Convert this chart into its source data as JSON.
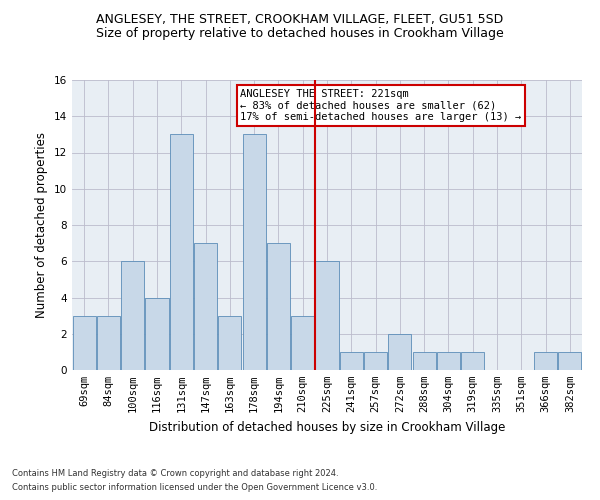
{
  "title1": "ANGLESEY, THE STREET, CROOKHAM VILLAGE, FLEET, GU51 5SD",
  "title2": "Size of property relative to detached houses in Crookham Village",
  "xlabel": "Distribution of detached houses by size in Crookham Village",
  "ylabel": "Number of detached properties",
  "footnote1": "Contains HM Land Registry data © Crown copyright and database right 2024.",
  "footnote2": "Contains public sector information licensed under the Open Government Licence v3.0.",
  "categories": [
    "69sqm",
    "84sqm",
    "100sqm",
    "116sqm",
    "131sqm",
    "147sqm",
    "163sqm",
    "178sqm",
    "194sqm",
    "210sqm",
    "225sqm",
    "241sqm",
    "257sqm",
    "272sqm",
    "288sqm",
    "304sqm",
    "319sqm",
    "335sqm",
    "351sqm",
    "366sqm",
    "382sqm"
  ],
  "values": [
    3,
    3,
    6,
    4,
    13,
    7,
    3,
    13,
    7,
    3,
    6,
    1,
    1,
    2,
    1,
    1,
    1,
    0,
    0,
    1,
    1
  ],
  "bar_color": "#c8d8e8",
  "bar_edge_color": "#5b8db8",
  "grid_color": "#bbbbcc",
  "vline_x": 9.5,
  "vline_color": "#cc0000",
  "annotation_title": "ANGLESEY THE STREET: 221sqm",
  "annotation_line1": "← 83% of detached houses are smaller (62)",
  "annotation_line2": "17% of semi-detached houses are larger (13) →",
  "annotation_box_color": "#ffffff",
  "annotation_box_edge": "#cc0000",
  "ylim": [
    0,
    16
  ],
  "yticks": [
    0,
    2,
    4,
    6,
    8,
    10,
    12,
    14,
    16
  ],
  "bg_color": "#e8eef4",
  "fig_bg_color": "#ffffff",
  "title1_fontsize": 9,
  "title2_fontsize": 9,
  "xlabel_fontsize": 8.5,
  "ylabel_fontsize": 8.5,
  "footnote_fontsize": 6,
  "tick_fontsize": 7.5,
  "annot_fontsize": 7.5
}
